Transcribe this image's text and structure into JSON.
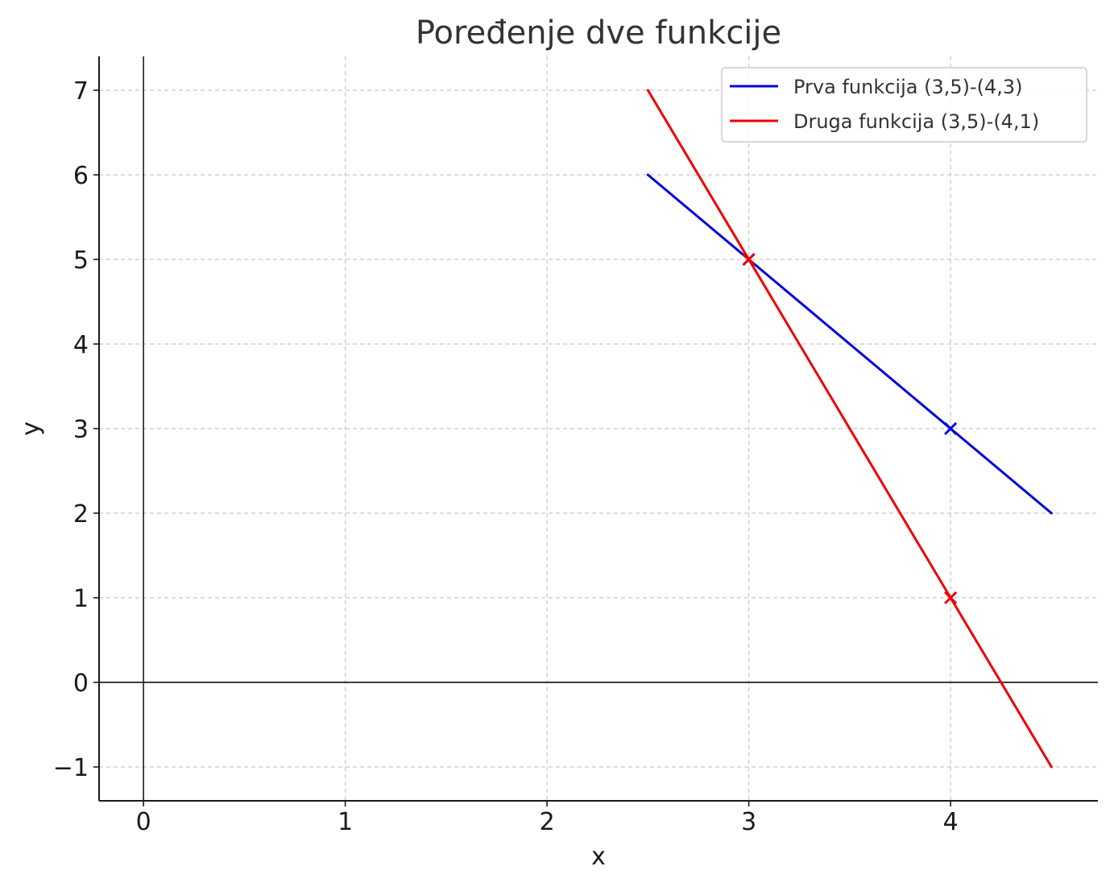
{
  "chart_data": {
    "type": "line",
    "title": "Poređenje dve funkcije",
    "xlabel": "x",
    "ylabel": "y",
    "xlim": [
      -0.22,
      4.73
    ],
    "ylim": [
      -1.4,
      7.4
    ],
    "x_ticks": [
      0,
      1,
      2,
      3,
      4
    ],
    "x_tick_labels": [
      "0",
      "1",
      "2",
      "3",
      "4"
    ],
    "y_ticks": [
      -1,
      0,
      1,
      2,
      3,
      4,
      5,
      6,
      7
    ],
    "y_tick_labels": [
      "−1",
      "0",
      "1",
      "2",
      "3",
      "4",
      "5",
      "6",
      "7"
    ],
    "grid": true,
    "zero_lines": true,
    "legend_position": "top-right",
    "series": [
      {
        "name": "Prva funkcija (3,5)-(4,3)",
        "color": "#0000dd",
        "x": [
          2.5,
          4.5
        ],
        "y": [
          6,
          2
        ],
        "markers": [
          {
            "x": 3,
            "y": 5
          },
          {
            "x": 4,
            "y": 3
          }
        ]
      },
      {
        "name": "Druga funkcija (3,5)-(4,1)",
        "color": "#ee0000",
        "x": [
          2.5,
          4.5
        ],
        "y": [
          7,
          -1
        ],
        "markers": [
          {
            "x": 3,
            "y": 5
          },
          {
            "x": 4,
            "y": 1
          }
        ]
      }
    ]
  }
}
